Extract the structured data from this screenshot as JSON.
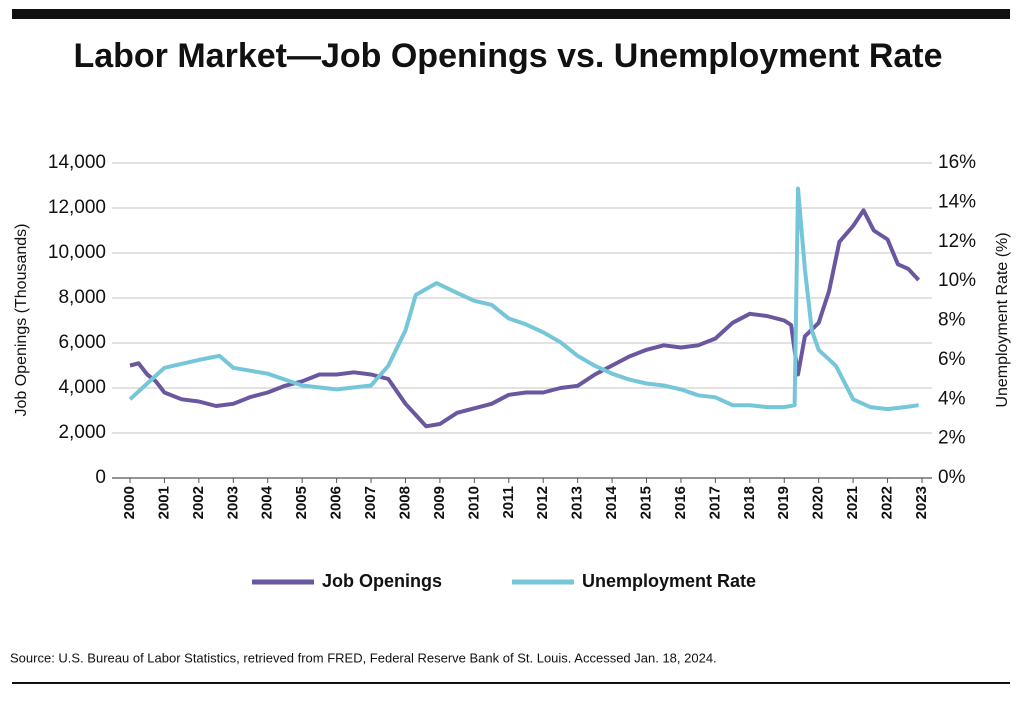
{
  "chart_data": {
    "type": "line",
    "title": "Labor Market—Job Openings vs. Unemployment Rate",
    "y_label": "Job Openings (Thousands)",
    "y2_label": "Unemployment Rate (%)",
    "source": "Source: U.S. Bureau of Labor Statistics, retrieved from FRED, Federal Reserve Bank of St. Louis. Accessed Jan. 18, 2024.",
    "xlim": [
      2000,
      2023
    ],
    "xticks": [
      2000,
      2001,
      2002,
      2003,
      2004,
      2005,
      2006,
      2007,
      2008,
      2009,
      2010,
      2011,
      2012,
      2013,
      2014,
      2015,
      2016,
      2017,
      2018,
      2019,
      2020,
      2021,
      2022,
      2023
    ],
    "ylim": [
      0,
      14000
    ],
    "yticks": [
      0,
      {
        "value": 2000,
        "label": "2,000"
      },
      {
        "value": 4000,
        "label": "4,000"
      },
      {
        "value": 6000,
        "label": "6,000"
      },
      {
        "value": 8000,
        "label": "8,000"
      },
      {
        "value": 10000,
        "label": "10,000"
      },
      {
        "value": 12000,
        "label": "12,000"
      },
      {
        "value": 14000,
        "label": "14,000"
      }
    ],
    "y2lim": [
      0,
      16
    ],
    "y2ticks": [
      {
        "value": 0,
        "label": "0%"
      },
      {
        "value": 2,
        "label": "2%"
      },
      {
        "value": 4,
        "label": "4%"
      },
      {
        "value": 6,
        "label": "6%"
      },
      {
        "value": 8,
        "label": "8%"
      },
      {
        "value": 10,
        "label": "10%"
      },
      {
        "value": 12,
        "label": "12%"
      },
      {
        "value": 14,
        "label": "14%"
      },
      {
        "value": 16,
        "label": "16%"
      }
    ],
    "grid": true,
    "series": [
      {
        "name": "Job Openings",
        "color": "#6a57a0",
        "x": [
          2000,
          2000.25,
          2000.5,
          2000.75,
          2001,
          2001.5,
          2002,
          2002.5,
          2003,
          2003.5,
          2004,
          2004.5,
          2005,
          2005.5,
          2006,
          2006.5,
          2007,
          2007.5,
          2008,
          2008.3,
          2008.6,
          2009,
          2009.5,
          2010,
          2010.5,
          2011,
          2011.5,
          2012,
          2012.5,
          2013,
          2013.5,
          2014,
          2014.5,
          2015,
          2015.5,
          2016,
          2016.5,
          2017,
          2017.5,
          2018,
          2018.5,
          2019,
          2019.2,
          2019.4,
          2019.6,
          2020,
          2020.3,
          2020.6,
          2021,
          2021.3,
          2021.6,
          2022,
          2022.3,
          2022.6,
          2022.9
        ],
        "values": [
          5000,
          5100,
          4600,
          4300,
          3800,
          3500,
          3400,
          3200,
          3300,
          3600,
          3800,
          4100,
          4300,
          4600,
          4600,
          4700,
          4600,
          4400,
          3300,
          2800,
          2300,
          2400,
          2900,
          3100,
          3300,
          3700,
          3800,
          3800,
          4000,
          4100,
          4600,
          5000,
          5400,
          5700,
          5900,
          5800,
          5900,
          6200,
          6900,
          7300,
          7200,
          7000,
          6800,
          4600,
          6300,
          6900,
          8300,
          10500,
          11200,
          11900,
          11000,
          10600,
          9500,
          9300,
          8800
        ]
      },
      {
        "name": "Unemployment Rate",
        "color": "#75c6d8",
        "axis": "y2",
        "x": [
          2000,
          2001,
          2002,
          2002.6,
          2003,
          2004,
          2004.5,
          2005,
          2006,
          2007,
          2007.5,
          2008,
          2008.3,
          2008.9,
          2009.5,
          2010,
          2010.5,
          2011,
          2011.5,
          2012,
          2012.5,
          2013,
          2013.5,
          2014,
          2014.5,
          2015,
          2015.5,
          2016,
          2016.5,
          2017,
          2017.5,
          2018,
          2018.5,
          2019,
          2019.3,
          2019.4,
          2019.6,
          2019.8,
          2020,
          2020.5,
          2021,
          2021.5,
          2022,
          2022.5,
          2022.9
        ],
        "values": [
          4.0,
          5.6,
          6.0,
          6.2,
          5.6,
          5.3,
          5.0,
          4.7,
          4.5,
          4.7,
          5.7,
          7.5,
          9.3,
          9.9,
          9.4,
          9.0,
          8.8,
          8.1,
          7.8,
          7.4,
          6.9,
          6.2,
          5.7,
          5.3,
          5.0,
          4.8,
          4.7,
          4.5,
          4.2,
          4.1,
          3.7,
          3.7,
          3.6,
          3.6,
          3.7,
          14.7,
          10.6,
          7.5,
          6.5,
          5.7,
          4.0,
          3.6,
          3.5,
          3.6,
          3.7
        ]
      }
    ]
  }
}
